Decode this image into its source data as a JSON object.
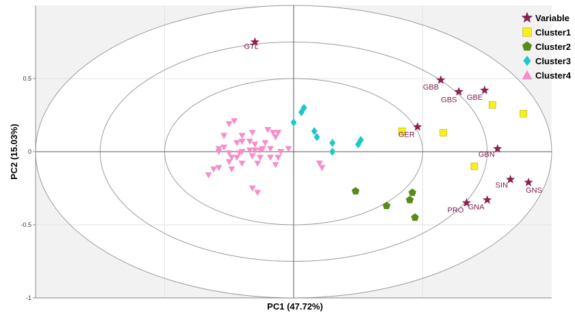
{
  "chart_data": {
    "type": "scatter",
    "xlabel": "PC1 (47.72%)",
    "ylabel": "PC2 (15.03%)",
    "xlim": [
      -1,
      1
    ],
    "ylim": [
      -1,
      1
    ],
    "yticks": [
      0.5,
      0,
      -0.5,
      -1
    ],
    "ytick_labels": [
      "0.5",
      "0",
      "-0.5",
      "-1"
    ],
    "x_gridlines": [
      -0.5,
      0,
      0.5
    ],
    "y_gridlines": [
      0.5,
      0,
      -0.5
    ],
    "correlation_circles": [
      1,
      0.75,
      0.5
    ],
    "background": {
      "outer": "#f2f2f2",
      "inner": "#ffffff"
    },
    "legend": {
      "position": "top-right",
      "items": [
        {
          "label": "Variable",
          "marker": "star",
          "color": "#8b2252"
        },
        {
          "label": "Cluster1",
          "marker": "square",
          "color": "#f7f01a"
        },
        {
          "label": "Cluster2",
          "marker": "pentagon",
          "color": "#5a8a1a"
        },
        {
          "label": "Cluster3",
          "marker": "diamond",
          "color": "#1ec8c8"
        },
        {
          "label": "Cluster4",
          "marker": "triangle",
          "color": "#f48fc8"
        }
      ]
    },
    "series": [
      {
        "name": "Variable",
        "marker": "star",
        "color": "#8b2252",
        "points": [
          {
            "x": -0.15,
            "y": 0.75,
            "label": "GTL"
          },
          {
            "x": 0.57,
            "y": 0.49,
            "label": "GBB"
          },
          {
            "x": 0.64,
            "y": 0.41,
            "label": "GBS"
          },
          {
            "x": 0.74,
            "y": 0.42,
            "label": "GBE"
          },
          {
            "x": 0.48,
            "y": 0.17,
            "label": "GER"
          },
          {
            "x": 0.79,
            "y": 0.02,
            "label": "GBN"
          },
          {
            "x": 0.84,
            "y": -0.19,
            "label": "SIN"
          },
          {
            "x": 0.91,
            "y": -0.21,
            "label": "GNS"
          },
          {
            "x": 0.67,
            "y": -0.35,
            "label": "PRO"
          },
          {
            "x": 0.75,
            "y": -0.33,
            "label": "GNA"
          }
        ]
      },
      {
        "name": "Cluster1",
        "marker": "square",
        "color": "#f7f01a",
        "points": [
          {
            "x": 0.42,
            "y": 0.14
          },
          {
            "x": 0.58,
            "y": 0.13
          },
          {
            "x": 0.77,
            "y": 0.32
          },
          {
            "x": 0.89,
            "y": 0.26
          },
          {
            "x": 0.7,
            "y": -0.1
          }
        ]
      },
      {
        "name": "Cluster2",
        "marker": "pentagon",
        "color": "#5a8a1a",
        "points": [
          {
            "x": 0.24,
            "y": -0.27
          },
          {
            "x": 0.36,
            "y": -0.37
          },
          {
            "x": 0.46,
            "y": -0.28
          },
          {
            "x": 0.45,
            "y": -0.33
          },
          {
            "x": 0.47,
            "y": -0.45
          }
        ]
      },
      {
        "name": "Cluster3",
        "marker": "diamond",
        "color": "#1ec8c8",
        "points": [
          {
            "x": 0.0,
            "y": 0.2
          },
          {
            "x": 0.03,
            "y": 0.27
          },
          {
            "x": 0.04,
            "y": 0.3
          },
          {
            "x": 0.08,
            "y": 0.14
          },
          {
            "x": 0.09,
            "y": 0.1
          },
          {
            "x": 0.15,
            "y": 0.06
          },
          {
            "x": 0.15,
            "y": 0.0
          },
          {
            "x": 0.25,
            "y": 0.05
          },
          {
            "x": 0.26,
            "y": 0.08
          }
        ]
      },
      {
        "name": "Cluster4",
        "marker": "triangle-down",
        "color": "#f48fc8",
        "points": [
          {
            "x": -0.23,
            "y": 0.21
          },
          {
            "x": -0.25,
            "y": 0.19
          },
          {
            "x": -0.27,
            "y": 0.11
          },
          {
            "x": -0.2,
            "y": 0.11
          },
          {
            "x": -0.16,
            "y": 0.13
          },
          {
            "x": -0.1,
            "y": 0.15
          },
          {
            "x": -0.08,
            "y": 0.13
          },
          {
            "x": -0.06,
            "y": 0.13
          },
          {
            "x": -0.07,
            "y": 0.1
          },
          {
            "x": -0.11,
            "y": 0.06
          },
          {
            "x": -0.15,
            "y": 0.05
          },
          {
            "x": -0.17,
            "y": 0.07
          },
          {
            "x": -0.2,
            "y": 0.07
          },
          {
            "x": -0.22,
            "y": 0.06
          },
          {
            "x": -0.27,
            "y": 0.03
          },
          {
            "x": -0.29,
            "y": 0.02
          },
          {
            "x": -0.29,
            "y": 0.0
          },
          {
            "x": -0.25,
            "y": -0.01
          },
          {
            "x": -0.21,
            "y": -0.01
          },
          {
            "x": -0.2,
            "y": 0.0
          },
          {
            "x": -0.17,
            "y": 0.01
          },
          {
            "x": -0.15,
            "y": 0.01
          },
          {
            "x": -0.13,
            "y": 0.01
          },
          {
            "x": -0.12,
            "y": 0.02
          },
          {
            "x": -0.09,
            "y": 0.02
          },
          {
            "x": -0.05,
            "y": 0.0
          },
          {
            "x": -0.02,
            "y": 0.02
          },
          {
            "x": -0.24,
            "y": -0.04
          },
          {
            "x": -0.22,
            "y": -0.04
          },
          {
            "x": -0.16,
            "y": -0.03
          },
          {
            "x": -0.13,
            "y": -0.04
          },
          {
            "x": -0.09,
            "y": -0.04
          },
          {
            "x": -0.06,
            "y": -0.04
          },
          {
            "x": -0.25,
            "y": -0.07
          },
          {
            "x": -0.2,
            "y": -0.08
          },
          {
            "x": -0.14,
            "y": -0.08
          },
          {
            "x": -0.07,
            "y": -0.09
          },
          {
            "x": -0.29,
            "y": -0.11
          },
          {
            "x": -0.31,
            "y": -0.12
          },
          {
            "x": -0.33,
            "y": -0.16
          },
          {
            "x": -0.24,
            "y": -0.12
          },
          {
            "x": 0.1,
            "y": -0.08
          },
          {
            "x": 0.1,
            "y": -0.08
          },
          {
            "x": 0.11,
            "y": -0.11
          },
          {
            "x": -0.16,
            "y": -0.25
          },
          {
            "x": -0.14,
            "y": -0.28
          }
        ]
      }
    ]
  }
}
